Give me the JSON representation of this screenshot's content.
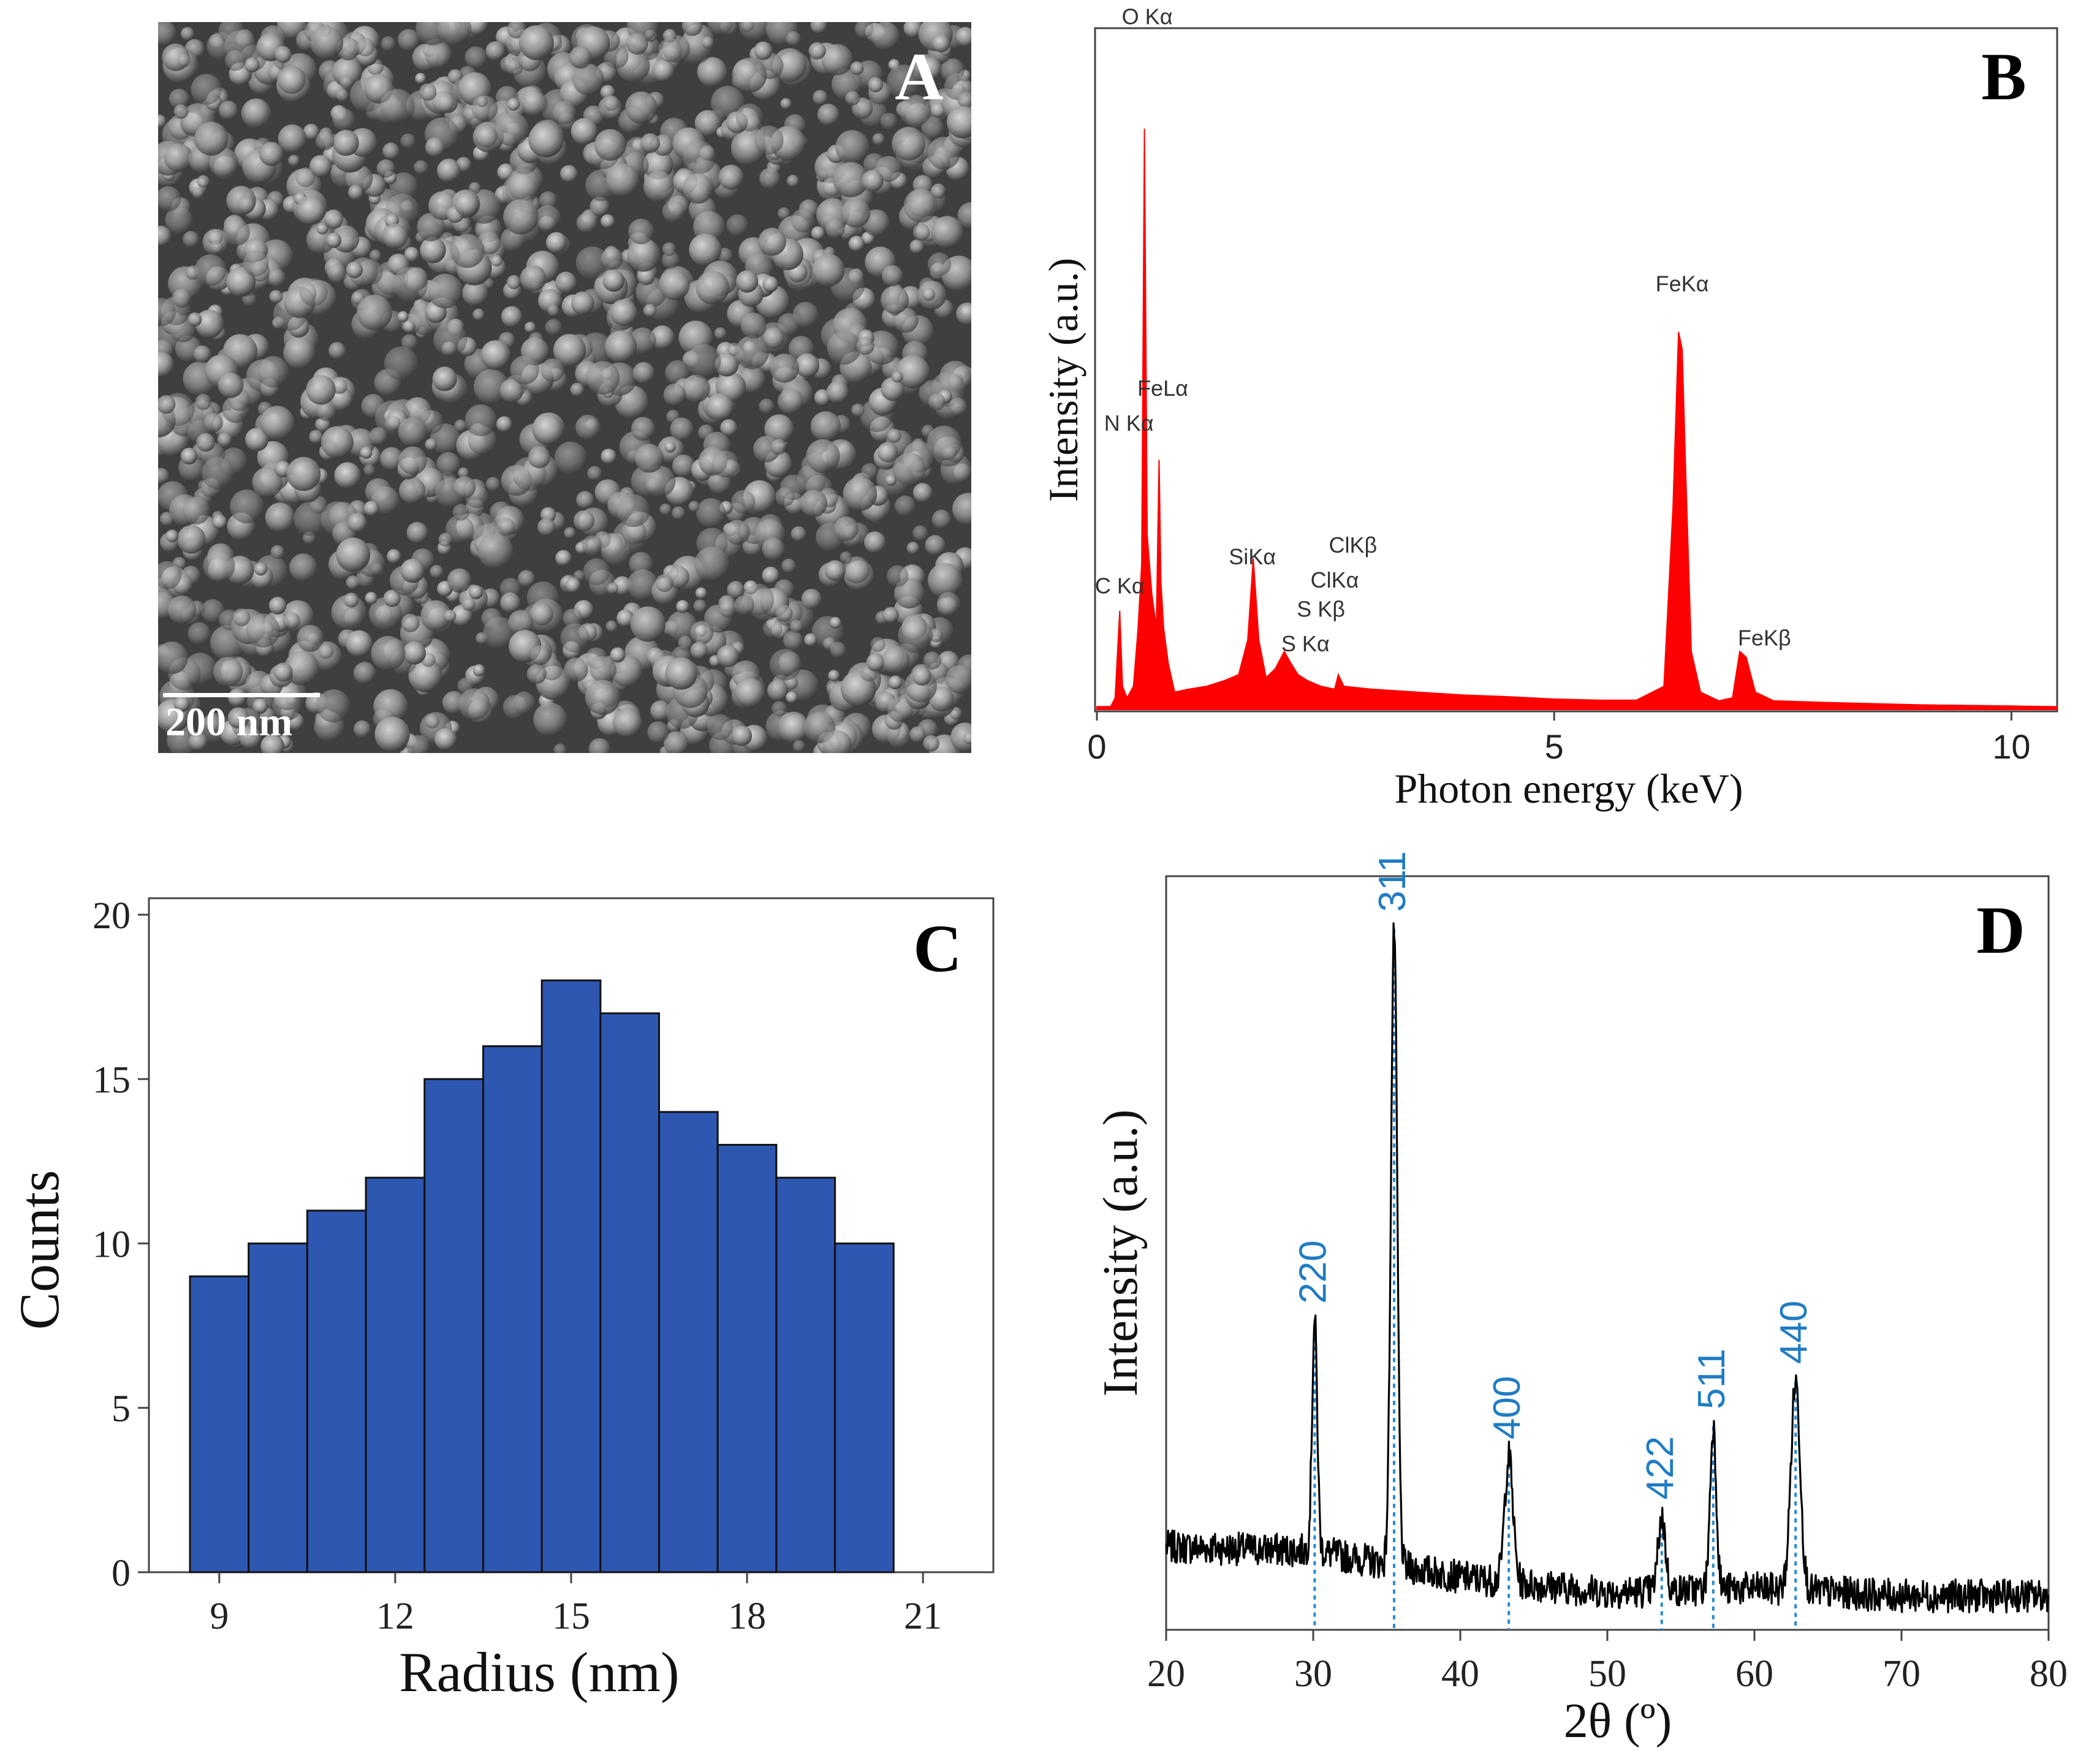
{
  "panel_letters": {
    "a": "A",
    "b": "B",
    "c": "C",
    "d": "D"
  },
  "sem": {
    "scale_label": "200 nm"
  },
  "colors": {
    "eds_fill": "#ff0000",
    "bar_fill": "#2e57b2",
    "xrd_line": "#000000",
    "xrd_marker": "#2a8ad0",
    "xrd_label": "#1f7cc4"
  },
  "chart_data": [
    {
      "id": "eds",
      "type": "area",
      "title": "",
      "xlabel": "Photon energy (keV)",
      "ylabel": "Intensity (a.u.)",
      "xlim": [
        0,
        10.5
      ],
      "ylim": [
        0,
        100
      ],
      "xticks": [
        0,
        5,
        10
      ],
      "x": [
        0.0,
        0.15,
        0.2,
        0.25,
        0.28,
        0.33,
        0.4,
        0.45,
        0.49,
        0.52,
        0.55,
        0.6,
        0.65,
        0.68,
        0.7,
        0.73,
        0.78,
        0.85,
        1.0,
        1.2,
        1.4,
        1.55,
        1.65,
        1.71,
        1.77,
        1.85,
        1.95,
        2.05,
        2.12,
        2.2,
        2.3,
        2.45,
        2.6,
        2.64,
        2.7,
        3.0,
        3.5,
        4.0,
        4.5,
        5.0,
        5.5,
        5.9,
        6.2,
        6.3,
        6.36,
        6.4,
        6.44,
        6.5,
        6.6,
        6.8,
        6.95,
        7.03,
        7.1,
        7.2,
        7.4,
        8.0,
        9.0,
        10.0,
        10.5
      ],
      "y": [
        0.5,
        0.5,
        2,
        17,
        4,
        2,
        4,
        14,
        25,
        100,
        30,
        20,
        14,
        43,
        22,
        14,
        8,
        3,
        3.5,
        4,
        5,
        6,
        12,
        26,
        12,
        5.5,
        7,
        10,
        8,
        6,
        5,
        4,
        3.5,
        6,
        4,
        3.5,
        3,
        2.5,
        2.2,
        1.8,
        1.6,
        1.6,
        4,
        35,
        65,
        62,
        40,
        10,
        3,
        1.5,
        2,
        10,
        9,
        3,
        1.5,
        1.2,
        0.8,
        0.6,
        0.5
      ],
      "annotations": [
        {
          "label": "O Kα",
          "x": 0.55,
          "y": 118
        },
        {
          "label": "FeLα",
          "x": 0.72,
          "y": 54
        },
        {
          "label": "N Kα",
          "x": 0.35,
          "y": 48
        },
        {
          "label": "C Kα",
          "x": 0.25,
          "y": 20
        },
        {
          "label": "SiKα",
          "x": 1.7,
          "y": 25
        },
        {
          "label": "ClKβ",
          "x": 2.8,
          "y": 27
        },
        {
          "label": "ClKα",
          "x": 2.6,
          "y": 21
        },
        {
          "label": "S Kβ",
          "x": 2.45,
          "y": 16
        },
        {
          "label": "S Kα",
          "x": 2.28,
          "y": 10
        },
        {
          "label": "FeKα",
          "x": 6.4,
          "y": 72
        },
        {
          "label": "FeKβ",
          "x": 7.3,
          "y": 11
        }
      ]
    },
    {
      "id": "histogram",
      "type": "bar",
      "title": "",
      "xlabel": "Radius (nm)",
      "ylabel": "Counts",
      "xlim": [
        7.8,
        22.2
      ],
      "ylim": [
        0,
        20.5
      ],
      "xticks": [
        9,
        12,
        15,
        18,
        21
      ],
      "yticks": [
        0,
        5,
        10,
        15,
        20
      ],
      "bin_edges": [
        8.5,
        9.5,
        10.5,
        11.5,
        12.5,
        13.5,
        14.5,
        15.5,
        16.5,
        17.5,
        18.5,
        19.5,
        20.5
      ],
      "values": [
        9,
        10,
        11,
        12,
        15,
        16,
        18,
        17,
        14,
        13,
        12,
        10
      ]
    },
    {
      "id": "xrd",
      "type": "line",
      "title": "",
      "xlabel": "2θ (º)",
      "ylabel": "Intensity (a.u.)",
      "xlim": [
        20,
        80
      ],
      "ylim": [
        0,
        100
      ],
      "xticks": [
        20,
        30,
        40,
        50,
        60,
        70,
        80
      ],
      "peaks": [
        {
          "label": "220",
          "x": 30.1,
          "y": 41
        },
        {
          "label": "311",
          "x": 35.5,
          "y": 93
        },
        {
          "label": "400",
          "x": 43.3,
          "y": 23
        },
        {
          "label": "422",
          "x": 53.7,
          "y": 15
        },
        {
          "label": "511",
          "x": 57.2,
          "y": 27
        },
        {
          "label": "440",
          "x": 62.8,
          "y": 33
        }
      ],
      "peak_widths": [
        0.25,
        0.3,
        0.4,
        0.35,
        0.3,
        0.45
      ],
      "baseline": [
        {
          "x": 20,
          "y": 11
        },
        {
          "x": 30,
          "y": 10.5
        },
        {
          "x": 40,
          "y": 7
        },
        {
          "x": 50,
          "y": 5
        },
        {
          "x": 60,
          "y": 5.5
        },
        {
          "x": 70,
          "y": 4.5
        },
        {
          "x": 80,
          "y": 4.5
        }
      ],
      "noise_amplitude": 2.2
    }
  ]
}
